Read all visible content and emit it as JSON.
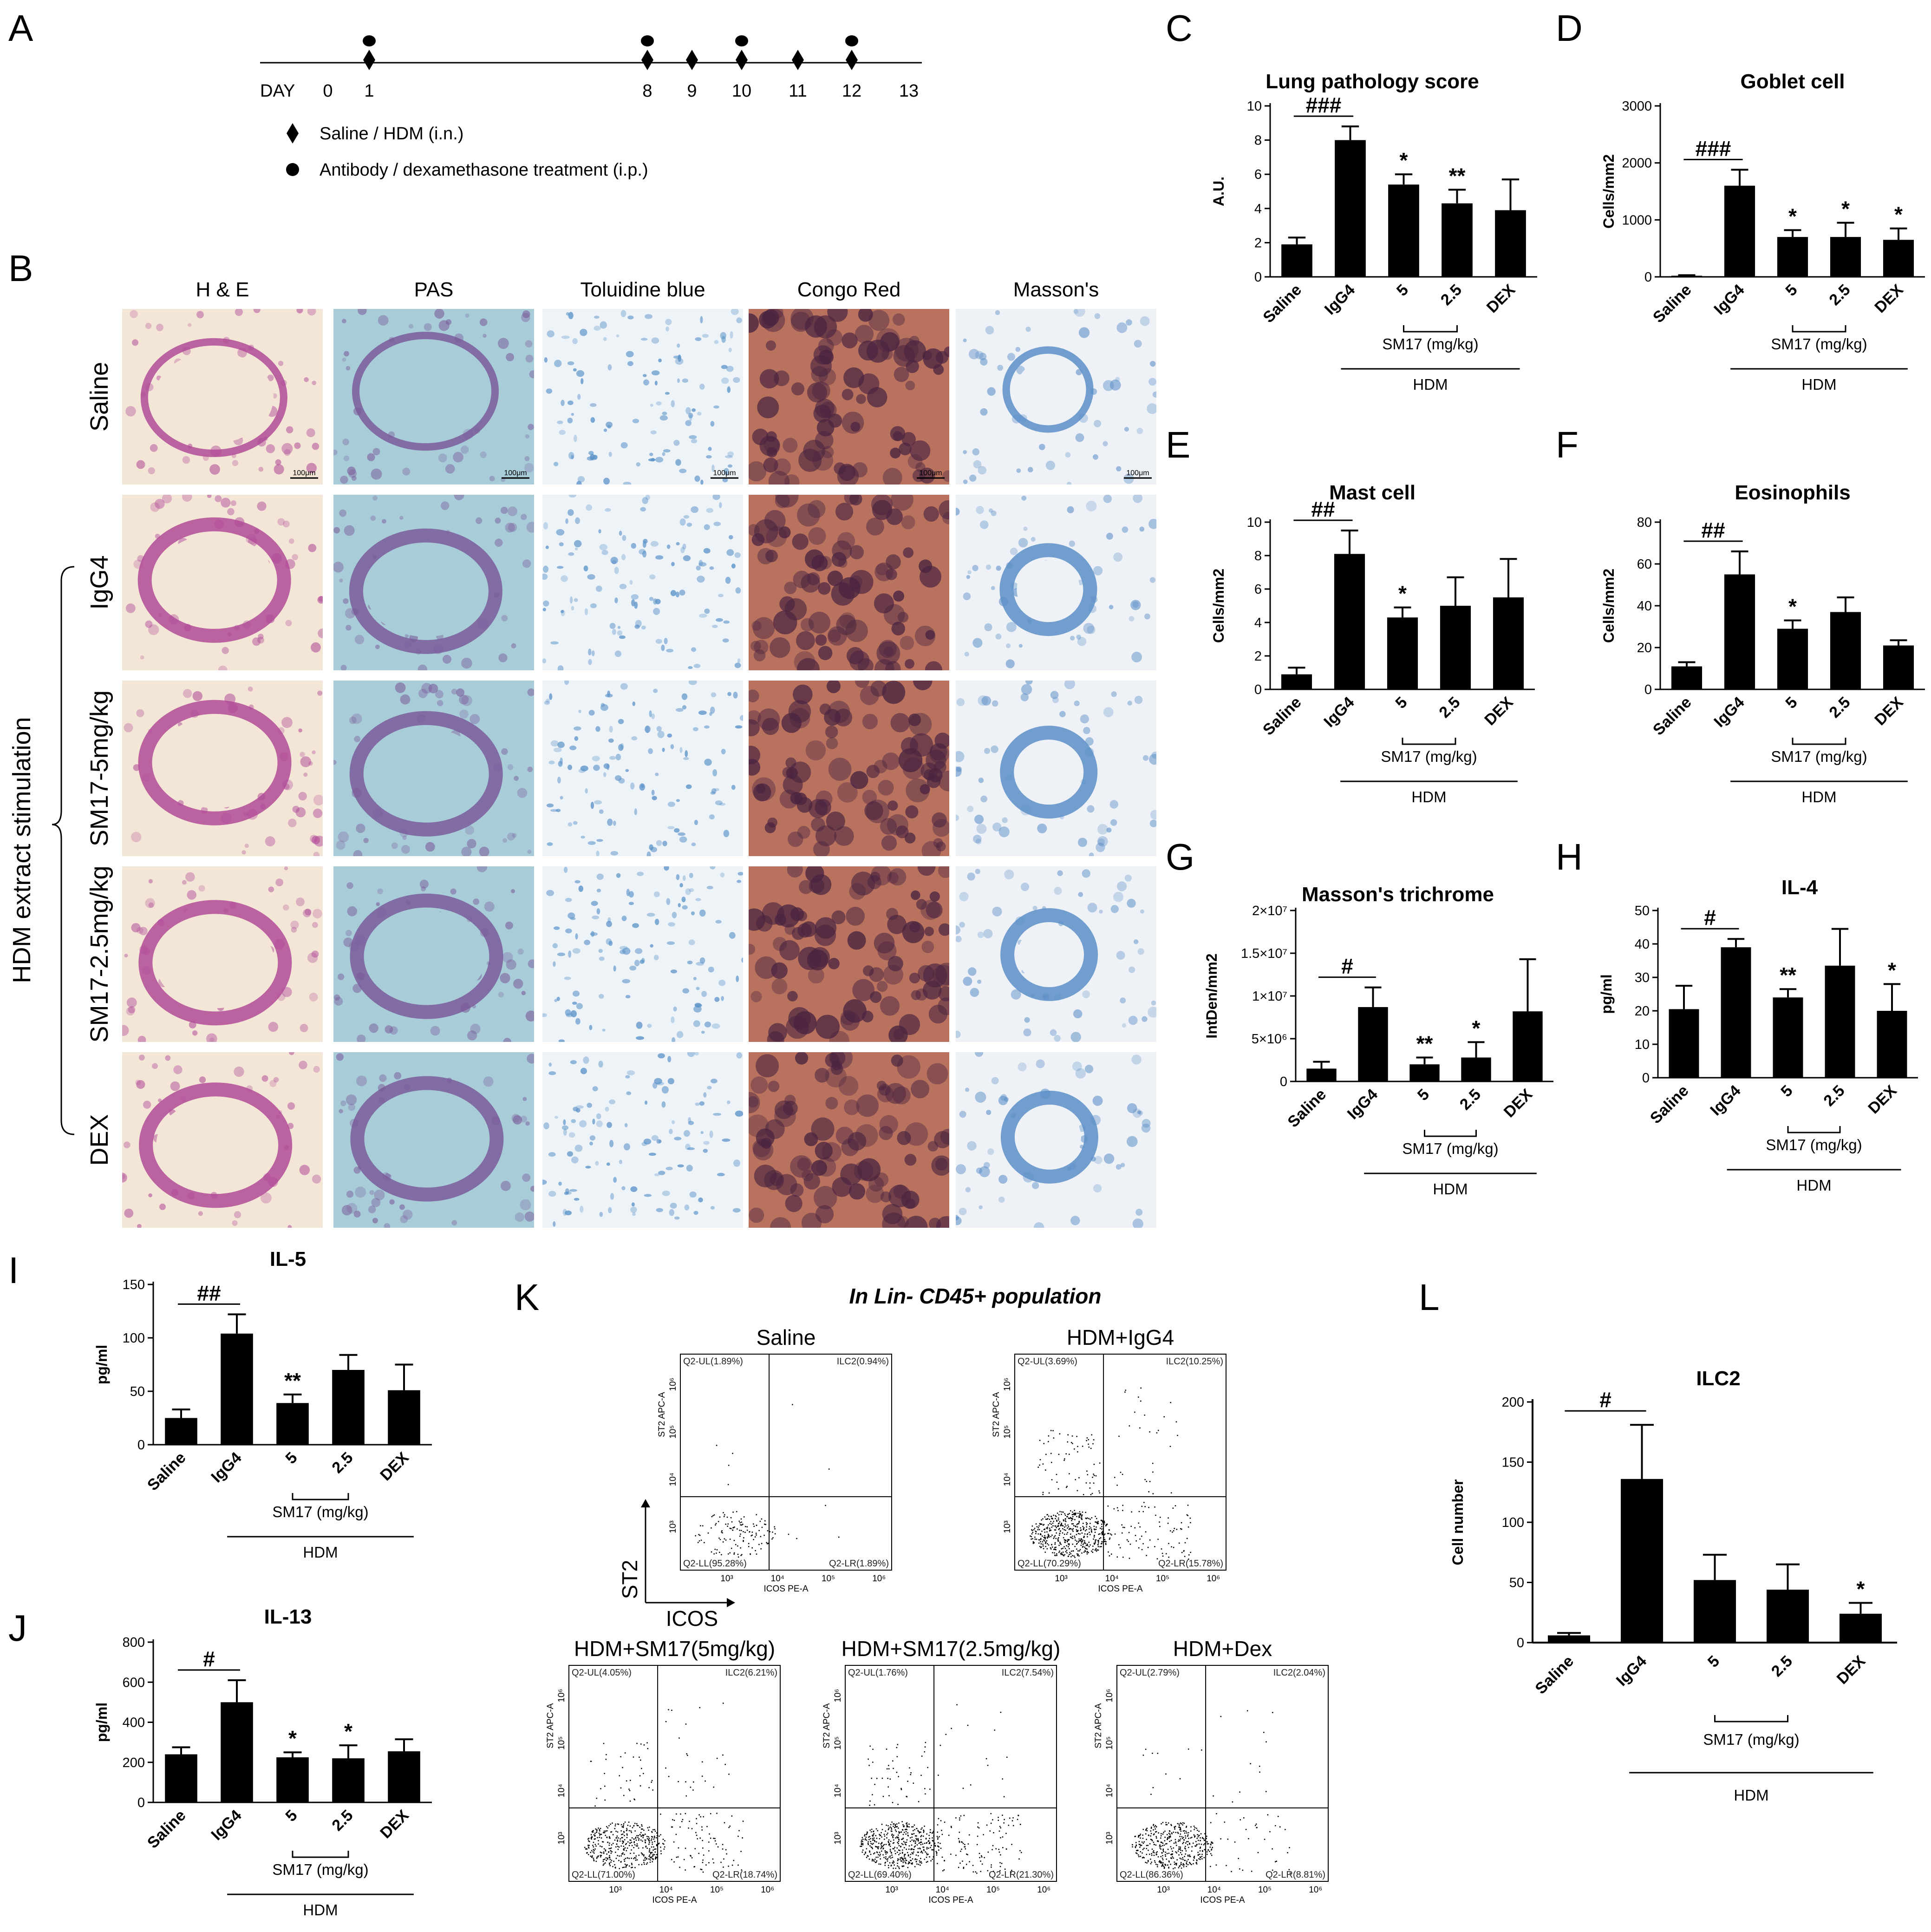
{
  "panels": {
    "A": "A",
    "B": "B",
    "C": "C",
    "D": "D",
    "E": "E",
    "F": "F",
    "G": "G",
    "H": "H",
    "I": "I",
    "J": "J",
    "K": "K",
    "L": "L"
  },
  "timeline": {
    "day_label": "DAY",
    "days": [
      "0",
      "1",
      "8",
      "9",
      "10",
      "11",
      "12",
      "13"
    ],
    "diamond_days": [
      "1",
      "8",
      "9",
      "10",
      "11",
      "12"
    ],
    "circle_days": [
      "1",
      "8",
      "10",
      "12"
    ],
    "legend_diamond": "Saline / HDM (i.n.)",
    "legend_circle": "Antibody / dexamethasone treatment (i.p.)"
  },
  "histology": {
    "columns": [
      "H & E",
      "PAS",
      "Toluidine blue",
      "Congo Red",
      "Masson's"
    ],
    "rows": [
      "Saline",
      "IgG4",
      "SM17-5mg/kg",
      "SM17-2.5mg/kg",
      "DEX"
    ],
    "group_label": "HDM extract stimulation",
    "scale_bar": "100μm"
  },
  "categories": [
    "Saline",
    "IgG4",
    "5",
    "2.5",
    "DEX"
  ],
  "sm17_label": "SM17 (mg/kg)",
  "hdm_label": "HDM",
  "flow": {
    "header": "In Lin- CD45+ population",
    "y_axis": "ST2",
    "x_axis": "ICOS",
    "x_param": "ICOS PE-A",
    "y_param": "ST2 APC-A",
    "ticks": [
      "10³",
      "10⁴",
      "10⁵",
      "10⁶"
    ],
    "plots": [
      {
        "title": "Saline",
        "ul": "Q2-UL(1.89%)",
        "ur": "ILC2(0.94%)",
        "ll": "Q2-LL(95.28%)",
        "lr": "Q2-LR(1.89%)"
      },
      {
        "title": "HDM+IgG4",
        "ul": "Q2-UL(3.69%)",
        "ur": "ILC2(10.25%)",
        "ll": "Q2-LL(70.29%)",
        "lr": "Q2-LR(15.78%)"
      },
      {
        "title": "HDM+SM17(5mg/kg)",
        "ul": "Q2-UL(4.05%)",
        "ur": "ILC2(6.21%)",
        "ll": "Q2-LL(71.00%)",
        "lr": "Q2-LR(18.74%)"
      },
      {
        "title": "HDM+SM17(2.5mg/kg)",
        "ul": "Q2-UL(1.76%)",
        "ur": "ILC2(7.54%)",
        "ll": "Q2-LL(69.40%)",
        "lr": "Q2-LR(21.30%)"
      },
      {
        "title": "HDM+Dex",
        "ul": "Q2-UL(2.79%)",
        "ur": "ILC2(2.04%)",
        "ll": "Q2-LL(86.36%)",
        "lr": "Q2-LR(8.81%)"
      }
    ]
  },
  "chart_data": [
    {
      "id": "C",
      "type": "bar",
      "title": "Lung pathology score",
      "ylabel": "A.U.",
      "categories": [
        "Saline",
        "IgG4",
        "5",
        "2.5",
        "DEX"
      ],
      "values": [
        1.9,
        8.0,
        5.4,
        4.3,
        3.9
      ],
      "errors": [
        0.4,
        0.8,
        0.6,
        0.8,
        1.8
      ],
      "ylim": [
        0,
        10
      ],
      "yticks": [
        "0",
        "2",
        "4",
        "6",
        "8",
        "10"
      ],
      "sig": [
        "",
        "",
        "*",
        "**",
        ""
      ],
      "ref_label": "###"
    },
    {
      "id": "D",
      "type": "bar",
      "title": "Goblet cell",
      "ylabel": "Cells/mm2",
      "categories": [
        "Saline",
        "IgG4",
        "5",
        "2.5",
        "DEX"
      ],
      "values": [
        20,
        1600,
        700,
        700,
        650
      ],
      "errors": [
        10,
        280,
        120,
        250,
        200
      ],
      "ylim": [
        0,
        3000
      ],
      "yticks": [
        "0",
        "1000",
        "2000",
        "3000"
      ],
      "sig": [
        "",
        "",
        "*",
        "*",
        "*"
      ],
      "ref_label": "###"
    },
    {
      "id": "E",
      "type": "bar",
      "title": "Mast cell",
      "ylabel": "Cells/mm2",
      "categories": [
        "Saline",
        "IgG4",
        "5",
        "2.5",
        "DEX"
      ],
      "values": [
        0.9,
        8.1,
        4.3,
        5.0,
        5.5
      ],
      "errors": [
        0.4,
        1.4,
        0.6,
        1.7,
        2.3
      ],
      "ylim": [
        0,
        10
      ],
      "yticks": [
        "0",
        "2",
        "4",
        "6",
        "8",
        "10"
      ],
      "sig": [
        "",
        "",
        "*",
        "",
        ""
      ],
      "ref_label": "##"
    },
    {
      "id": "F",
      "type": "bar",
      "title": "Eosinophils",
      "ylabel": "Cells/mm2",
      "categories": [
        "Saline",
        "IgG4",
        "5",
        "2.5",
        "DEX"
      ],
      "values": [
        11,
        55,
        29,
        37,
        21
      ],
      "errors": [
        2,
        11,
        4,
        7,
        2.5
      ],
      "ylim": [
        0,
        80
      ],
      "yticks": [
        "0",
        "20",
        "40",
        "60",
        "80"
      ],
      "sig": [
        "",
        "",
        "*",
        "",
        ""
      ],
      "ref_label": "##"
    },
    {
      "id": "G",
      "type": "bar",
      "title": "Masson's trichrome",
      "ylabel": "IntDen/mm2",
      "categories": [
        "Saline",
        "IgG4",
        "5",
        "2.5",
        "DEX"
      ],
      "values": [
        1500000,
        8700000,
        2000000,
        2800000,
        8200000
      ],
      "errors": [
        800000,
        2300000,
        800000,
        1800000,
        6100000
      ],
      "ylim": [
        0,
        20000000
      ],
      "yticks": [
        "0",
        "5×10⁶",
        "1×10⁷",
        "1.5×10⁷",
        "2×10⁷"
      ],
      "sig": [
        "",
        "",
        "**",
        "*",
        ""
      ],
      "ref_label": "#"
    },
    {
      "id": "H",
      "type": "bar",
      "title": "IL-4",
      "ylabel": "pg/ml",
      "categories": [
        "Saline",
        "IgG4",
        "5",
        "2.5",
        "DEX"
      ],
      "values": [
        20.5,
        39,
        24,
        33.5,
        20
      ],
      "errors": [
        7,
        2.5,
        2.5,
        11,
        8
      ],
      "ylim": [
        0,
        50
      ],
      "yticks": [
        "0",
        "10",
        "20",
        "30",
        "40",
        "50"
      ],
      "sig": [
        "",
        "",
        "**",
        "",
        "*"
      ],
      "ref_label": "#"
    },
    {
      "id": "I",
      "type": "bar",
      "title": "IL-5",
      "ylabel": "pg/ml",
      "categories": [
        "Saline",
        "IgG4",
        "5",
        "2.5",
        "DEX"
      ],
      "values": [
        25,
        104,
        39,
        70,
        51
      ],
      "errors": [
        8,
        18,
        8,
        14,
        24
      ],
      "ylim": [
        0,
        150
      ],
      "yticks": [
        "0",
        "50",
        "100",
        "150"
      ],
      "sig": [
        "",
        "",
        "**",
        "",
        ""
      ],
      "ref_label": "##"
    },
    {
      "id": "J",
      "type": "bar",
      "title": "IL-13",
      "ylabel": "pg/ml",
      "categories": [
        "Saline",
        "IgG4",
        "5",
        "2.5",
        "DEX"
      ],
      "values": [
        240,
        500,
        225,
        220,
        255
      ],
      "errors": [
        35,
        110,
        25,
        65,
        60
      ],
      "ylim": [
        0,
        800
      ],
      "yticks": [
        "0",
        "200",
        "400",
        "600",
        "800"
      ],
      "sig": [
        "",
        "",
        "*",
        "*",
        ""
      ],
      "ref_label": "#"
    },
    {
      "id": "L",
      "type": "bar",
      "title": "ILC2",
      "ylabel": "Cell number",
      "categories": [
        "Saline",
        "IgG4",
        "5",
        "2.5",
        "DEX"
      ],
      "values": [
        6,
        136,
        52,
        44,
        24
      ],
      "errors": [
        2,
        45,
        21,
        21,
        9
      ],
      "ylim": [
        0,
        200
      ],
      "yticks": [
        "0",
        "50",
        "100",
        "150",
        "200"
      ],
      "sig": [
        "",
        "",
        "",
        "",
        "*"
      ],
      "ref_label": "#"
    }
  ],
  "colors": {
    "bar": "#000000",
    "axis": "#000000",
    "he_bg": "#f3e6d6",
    "he_tissue": "#b04a98",
    "pas_bg": "#a8ccd8",
    "pas_tissue": "#7a5a9a",
    "tol_bg": "#eef3f8",
    "tol_tissue": "#5a92c8",
    "congo_bg": "#b8725e",
    "congo_tissue": "#4a2440",
    "masson_bg": "#eef1f5",
    "masson_tissue": "#5b8fc8"
  }
}
